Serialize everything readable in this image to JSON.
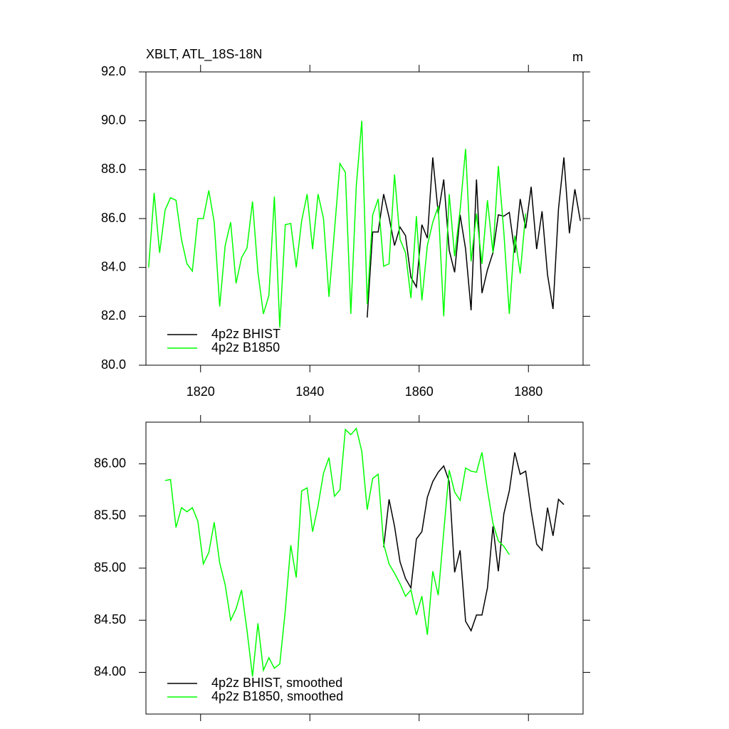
{
  "chart_data": [
    {
      "type": "line",
      "title": "XBLT, ATL_18S-18N",
      "units": "m",
      "x": [
        1810.5,
        1811.5,
        1812.5,
        1813.5,
        1814.5,
        1815.5,
        1816.5,
        1817.5,
        1818.5,
        1819.5,
        1820.5,
        1821.5,
        1822.5,
        1823.5,
        1824.5,
        1825.5,
        1826.5,
        1827.5,
        1828.5,
        1829.5,
        1830.5,
        1831.5,
        1832.5,
        1833.5,
        1834.5,
        1835.5,
        1836.5,
        1837.5,
        1838.5,
        1839.5,
        1840.5,
        1841.5,
        1842.5,
        1843.5,
        1844.5,
        1845.5,
        1846.5,
        1847.5,
        1848.5,
        1849.5,
        1850.5,
        1851.5,
        1852.5,
        1853.5,
        1854.5,
        1855.5,
        1856.5,
        1857.5,
        1858.5,
        1859.5,
        1860.5,
        1861.5,
        1862.5,
        1863.5,
        1864.5,
        1865.5,
        1866.5,
        1867.5,
        1868.5,
        1869.5,
        1870.5,
        1871.5,
        1872.5,
        1873.5,
        1874.5,
        1875.5,
        1876.5,
        1877.5,
        1878.5,
        1879.5,
        1880.5,
        1881.5,
        1882.5,
        1883.5,
        1884.5,
        1885.5,
        1886.5,
        1887.5,
        1888.5,
        1889.5
      ],
      "series": [
        {
          "name": "4p2z BHIST",
          "color": "#000000",
          "values": [
            null,
            null,
            null,
            null,
            null,
            null,
            null,
            null,
            null,
            null,
            null,
            null,
            null,
            null,
            null,
            null,
            null,
            null,
            null,
            null,
            null,
            null,
            null,
            null,
            null,
            null,
            null,
            null,
            null,
            null,
            null,
            null,
            null,
            null,
            null,
            null,
            null,
            null,
            null,
            null,
            81.95,
            85.45,
            85.45,
            87.0,
            86.05,
            84.9,
            85.65,
            85.3,
            83.6,
            83.2,
            85.75,
            85.2,
            88.5,
            86.2,
            87.6,
            84.7,
            83.8,
            86.15,
            84.75,
            82.25,
            87.6,
            82.95,
            83.9,
            84.6,
            86.15,
            86.1,
            86.25,
            84.6,
            86.8,
            85.6,
            87.3,
            84.75,
            86.3,
            83.7,
            82.3,
            86.4,
            88.5,
            85.4,
            87.2,
            85.9
          ]
        },
        {
          "name": "4p2z B1850",
          "color": "#00ff00",
          "values": [
            84.0,
            87.05,
            84.6,
            86.35,
            86.85,
            86.75,
            85.15,
            84.15,
            83.85,
            86.0,
            86.0,
            87.15,
            85.85,
            82.4,
            84.9,
            85.85,
            83.35,
            84.4,
            84.8,
            86.7,
            83.8,
            82.1,
            82.85,
            86.9,
            81.55,
            85.75,
            85.8,
            84.0,
            85.9,
            87.0,
            84.75,
            87.0,
            86.0,
            82.8,
            85.5,
            88.25,
            87.9,
            82.1,
            87.35,
            90.0,
            82.5,
            86.15,
            86.8,
            84.05,
            84.15,
            87.8,
            85.15,
            84.6,
            82.75,
            86.1,
            82.65,
            84.9,
            85.85,
            86.5,
            82.0,
            87.0,
            84.45,
            86.35,
            88.85,
            84.25,
            86.2,
            84.15,
            86.75,
            84.6,
            88.15,
            85.45,
            82.1,
            85.3,
            83.75,
            86.2,
            null,
            null,
            null,
            null,
            null,
            null,
            null,
            null,
            null,
            null
          ]
        }
      ],
      "xlim": [
        1810,
        1890
      ],
      "xticks": [
        1820,
        1840,
        1860,
        1880
      ],
      "xtick_labels": true,
      "ylim": [
        80,
        92
      ],
      "yticks": [
        {
          "value": 80,
          "label": "80.0"
        },
        {
          "value": 82,
          "label": "82.0"
        },
        {
          "value": 84,
          "label": "84.0"
        },
        {
          "value": 86,
          "label": "86.0"
        },
        {
          "value": 88,
          "label": "88.0"
        },
        {
          "value": 90,
          "label": "90.0"
        },
        {
          "value": 92,
          "label": "92.0"
        }
      ],
      "legend": "lower left"
    },
    {
      "type": "line",
      "x": [
        1813.5,
        1814.5,
        1815.5,
        1816.5,
        1817.5,
        1818.5,
        1819.5,
        1820.5,
        1821.5,
        1822.5,
        1823.5,
        1824.5,
        1825.5,
        1826.5,
        1827.5,
        1828.5,
        1829.5,
        1830.5,
        1831.5,
        1832.5,
        1833.5,
        1834.5,
        1835.5,
        1836.5,
        1837.5,
        1838.5,
        1839.5,
        1840.5,
        1841.5,
        1842.5,
        1843.5,
        1844.5,
        1845.5,
        1846.5,
        1847.5,
        1848.5,
        1849.5,
        1850.5,
        1851.5,
        1852.5,
        1853.5,
        1854.5,
        1855.5,
        1856.5,
        1857.5,
        1858.5,
        1859.5,
        1860.5,
        1861.5,
        1862.5,
        1863.5,
        1864.5,
        1865.5,
        1866.5,
        1867.5,
        1868.5,
        1869.5,
        1870.5,
        1871.5,
        1872.5,
        1873.5,
        1874.5,
        1875.5,
        1876.5,
        1877.5,
        1878.5,
        1879.5,
        1880.5,
        1881.5,
        1882.5,
        1883.5,
        1884.5,
        1885.5,
        1886.5
      ],
      "series": [
        {
          "name": "4p2z BHIST, smoothed",
          "color": "#000000",
          "values": [
            null,
            null,
            null,
            null,
            null,
            null,
            null,
            null,
            null,
            null,
            null,
            null,
            null,
            null,
            null,
            null,
            null,
            null,
            null,
            null,
            null,
            null,
            null,
            null,
            null,
            null,
            null,
            null,
            null,
            null,
            null,
            null,
            null,
            null,
            null,
            null,
            null,
            null,
            null,
            null,
            85.2,
            85.66,
            85.4,
            85.06,
            84.9,
            84.81,
            85.28,
            85.35,
            85.68,
            85.83,
            85.92,
            85.98,
            85.83,
            84.96,
            85.17,
            84.49,
            84.4,
            84.55,
            84.55,
            84.81,
            85.4,
            84.97,
            85.52,
            85.74,
            86.11,
            85.9,
            85.93,
            85.55,
            85.23,
            85.17,
            85.58,
            85.31,
            85.66,
            85.61
          ]
        },
        {
          "name": "4p2z B1850, smoothed",
          "color": "#00ff00",
          "values": [
            85.84,
            85.85,
            85.39,
            85.58,
            85.54,
            85.58,
            85.45,
            85.04,
            85.15,
            85.44,
            85.05,
            84.84,
            84.5,
            84.61,
            84.79,
            84.4,
            83.96,
            84.47,
            84.02,
            84.14,
            84.04,
            84.08,
            84.59,
            85.22,
            84.91,
            85.74,
            85.77,
            85.35,
            85.6,
            85.91,
            86.06,
            85.69,
            85.75,
            86.33,
            86.28,
            86.34,
            86.12,
            85.56,
            85.86,
            85.9,
            85.23,
            85.04,
            84.95,
            84.85,
            84.73,
            84.79,
            84.55,
            84.73,
            84.36,
            84.97,
            84.74,
            85.35,
            85.94,
            85.73,
            85.65,
            85.96,
            85.93,
            85.92,
            86.11,
            85.75,
            85.43,
            85.26,
            85.21,
            85.13,
            null,
            null,
            null,
            null,
            null,
            null,
            null,
            null,
            null,
            null
          ]
        }
      ],
      "xlim": [
        1810,
        1890
      ],
      "xticks": [
        1820,
        1840,
        1860,
        1880
      ],
      "xtick_labels": false,
      "ylim": [
        83.6,
        86.4
      ],
      "yticks": [
        {
          "value": 84,
          "label": "84.00"
        },
        {
          "value": 84.5,
          "label": "84.50"
        },
        {
          "value": 85,
          "label": "85.00"
        },
        {
          "value": 85.5,
          "label": "85.50"
        },
        {
          "value": 86,
          "label": "86.00"
        }
      ],
      "legend": "lower left"
    }
  ]
}
